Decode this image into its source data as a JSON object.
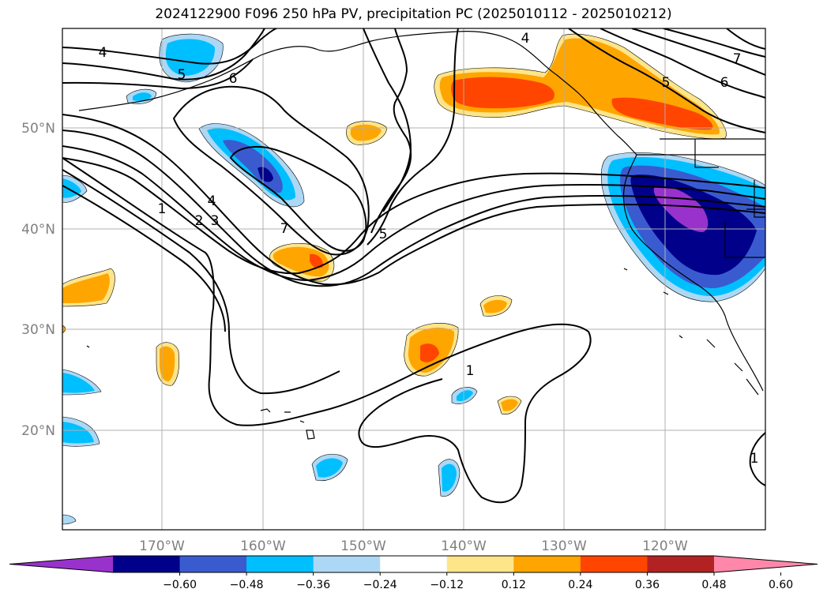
{
  "title": "2024122900 F096 250 hPa PV, precipitation PC (2025010112 - 2025010212)",
  "lat_labels": [
    "50°N",
    "40°N",
    "30°N",
    "20°N"
  ],
  "lon_labels": [
    "170°W",
    "160°W",
    "150°W",
    "140°W",
    "130°W",
    "120°W"
  ],
  "contour_labels": [
    "4",
    "5",
    "6",
    "4",
    "7",
    "5",
    "6",
    "1",
    "2",
    "3",
    "4",
    "7",
    "5",
    "1",
    "1"
  ],
  "colorbar": {
    "ticks": [
      "−0.60",
      "−0.48",
      "−0.36",
      "−0.24",
      "−0.12",
      "0.12",
      "0.24",
      "0.36",
      "0.48",
      "0.60"
    ],
    "colors": [
      "#9932cc",
      "#00008b",
      "#3a5bd0",
      "#00bfff",
      "#add8f5",
      "#ffffff",
      "#ffe58a",
      "#ffa500",
      "#ff4500",
      "#b22222",
      "#ff88aa"
    ]
  }
}
